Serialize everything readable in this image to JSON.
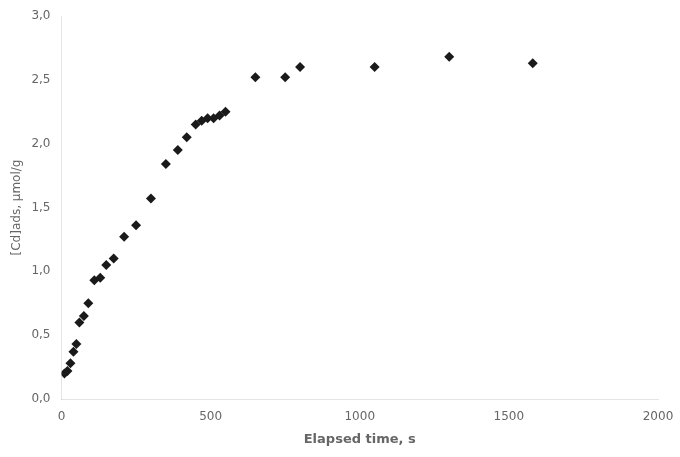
{
  "chart_data": {
    "type": "scatter",
    "x": [
      10,
      20,
      30,
      40,
      50,
      60,
      75,
      90,
      110,
      130,
      150,
      175,
      210,
      250,
      300,
      350,
      390,
      420,
      450,
      470,
      490,
      510,
      530,
      550,
      650,
      750,
      800,
      1050,
      1300,
      1580
    ],
    "y": [
      0.2,
      0.22,
      0.28,
      0.37,
      0.43,
      0.6,
      0.65,
      0.75,
      0.93,
      0.95,
      1.05,
      1.1,
      1.27,
      1.36,
      1.57,
      1.84,
      1.95,
      2.05,
      2.15,
      2.18,
      2.2,
      2.2,
      2.22,
      2.25,
      2.52,
      2.52,
      2.6,
      2.6,
      2.68,
      2.63
    ],
    "xlabel": "Elapsed time, s",
    "ylabel": "[Cd]ads, μmol/g",
    "xlim": [
      0,
      2000
    ],
    "ylim": [
      0.0,
      3.0
    ],
    "xticks": [
      0,
      500,
      1000,
      1500,
      2000
    ],
    "yticks": [
      {
        "value": 0.0,
        "label": "0,0"
      },
      {
        "value": 0.5,
        "label": "0,5"
      },
      {
        "value": 1.0,
        "label": "1,0"
      },
      {
        "value": 1.5,
        "label": "1,5"
      },
      {
        "value": 2.0,
        "label": "2,0"
      },
      {
        "value": 2.5,
        "label": "2,5"
      },
      {
        "value": 3.0,
        "label": "3,0"
      }
    ],
    "color": "#1a1a1a",
    "marker": "diamond",
    "grid": false
  }
}
